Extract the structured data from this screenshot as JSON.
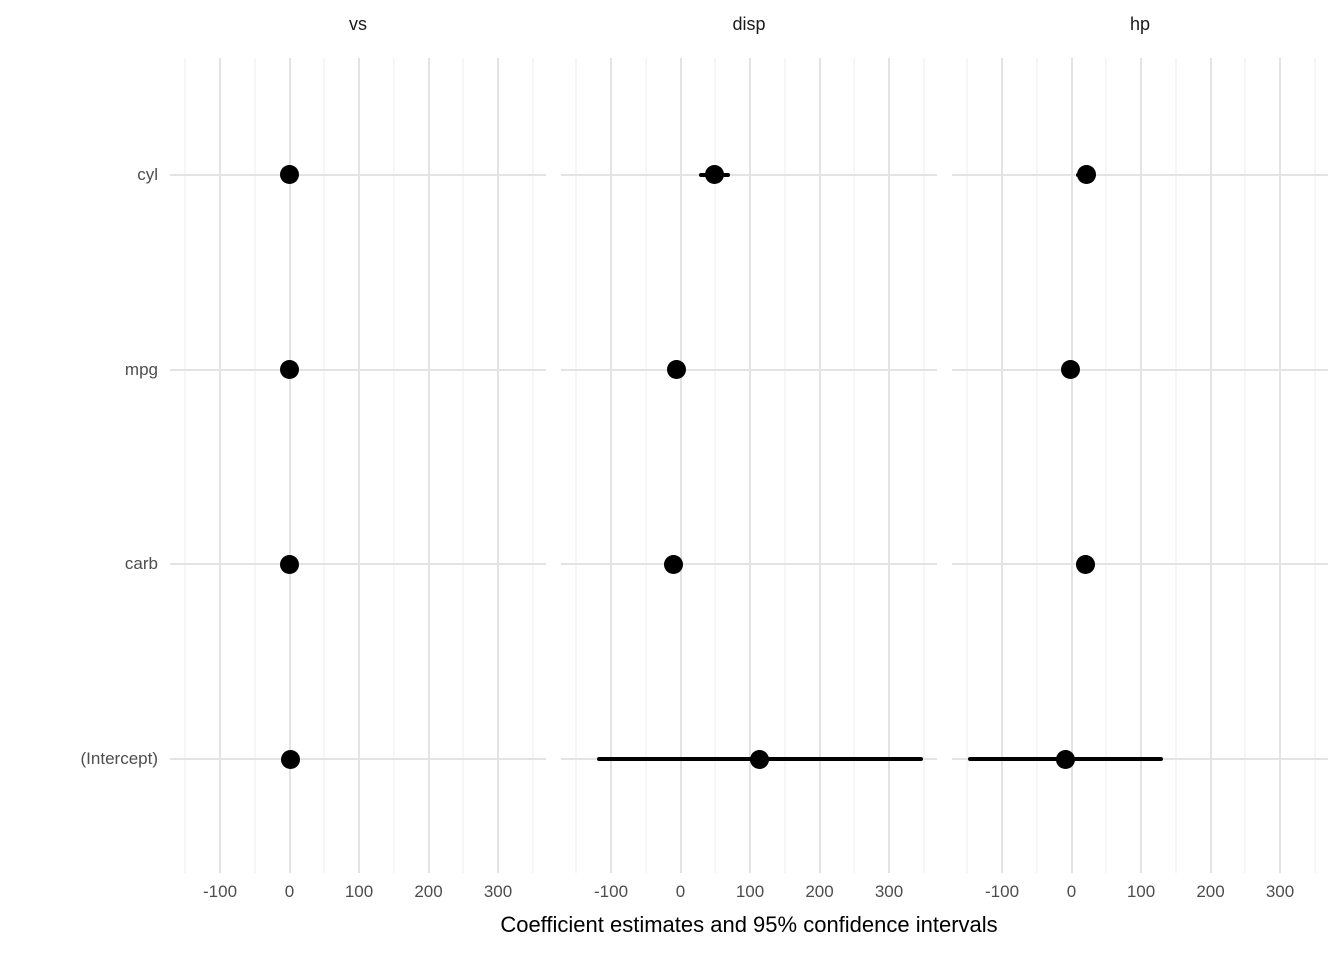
{
  "chart_data": {
    "type": "pointrange",
    "title": "",
    "xlabel": "Coefficient estimates and 95% confidence intervals",
    "ylabel": "",
    "grid": true,
    "legend": "none",
    "point_color": "#000000",
    "gridline_color": "#e3e3e3",
    "axis_text_color": "#4d4d4d",
    "x_range": [
      -172,
      369
    ],
    "x_ticks_major": [
      -100,
      0,
      100,
      200,
      300
    ],
    "x_tick_labels": [
      "-100",
      "0",
      "100",
      "200",
      "300"
    ],
    "x_ticks_minor": [
      -150,
      -50,
      50,
      150,
      250,
      350
    ],
    "y_categories": [
      "cyl",
      "mpg",
      "carb",
      "(Intercept)"
    ],
    "facets": [
      {
        "label": "vs",
        "terms": [
          {
            "term": "cyl",
            "estimate": -0.11,
            "conf_low": -0.29,
            "conf_high": 0.08
          },
          {
            "term": "mpg",
            "estimate": 0.02,
            "conf_low": -0.02,
            "conf_high": 0.07
          },
          {
            "term": "carb",
            "estimate": -0.09,
            "conf_low": -0.19,
            "conf_high": 0.02
          },
          {
            "term": "(Intercept)",
            "estimate": 1.09,
            "conf_low": -0.33,
            "conf_high": 2.51
          }
        ]
      },
      {
        "label": "disp",
        "terms": [
          {
            "term": "cyl",
            "estimate": 48.9,
            "conf_low": 26.5,
            "conf_high": 71.4
          },
          {
            "term": "mpg",
            "estimate": -5.9,
            "conf_low": -18.6,
            "conf_high": 6.8
          },
          {
            "term": "carb",
            "estimate": -10.3,
            "conf_low": -24.2,
            "conf_high": 3.6
          },
          {
            "term": "(Intercept)",
            "estimate": 114.2,
            "conf_low": -119.9,
            "conf_high": 348.3
          }
        ]
      },
      {
        "label": "hp",
        "terms": [
          {
            "term": "cyl",
            "estimate": 21.1,
            "conf_low": 7.1,
            "conf_high": 35.1
          },
          {
            "term": "mpg",
            "estimate": -1.8,
            "conf_low": -9.8,
            "conf_high": 6.2
          },
          {
            "term": "carb",
            "estimate": 19.6,
            "conf_low": 6.0,
            "conf_high": 33.2
          },
          {
            "term": "(Intercept)",
            "estimate": -8.3,
            "conf_low": -148.9,
            "conf_high": 132.2
          }
        ]
      }
    ]
  }
}
